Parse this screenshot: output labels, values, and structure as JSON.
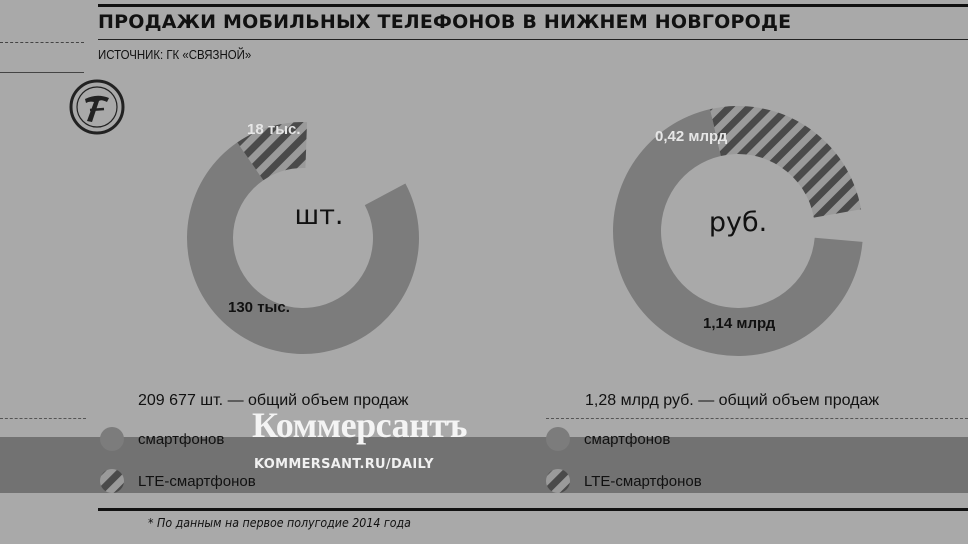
{
  "title": "ПРОДАЖИ МОБИЛЬНЫХ ТЕЛЕФОНОВ В НИЖНЕМ НОВГОРОДЕ",
  "source": "ИСТОЧНИК: ГК «СВЯЗНОЙ»",
  "footnote": "* По данным на первое полугодие 2014 года",
  "colors": {
    "background": "#a9a9a9",
    "smartphone_segment": "#7c7c7c",
    "lte_stripe_dark": "#4a4a4a",
    "lte_stripe_light": "#9a9a9a"
  },
  "watermark": {
    "name": "Коммерсантъ",
    "url": "KOMMERSANT.RU/DAILY",
    "logo_icon": "kommersant-logo-icon"
  },
  "chart_data": [
    {
      "type": "pie",
      "center_label": "шт.",
      "total_text": "209 677 шт. — общий объем продаж",
      "segments": [
        {
          "name": "смартфонов",
          "value": 130,
          "label": "130 тыс.",
          "pattern": "solid"
        },
        {
          "name": "LTE-смартфонов",
          "value": 18,
          "label": "18 тыс.",
          "pattern": "hatched"
        }
      ],
      "legend": [
        "смартфонов",
        "LTE-смартфонов"
      ]
    },
    {
      "type": "pie",
      "center_label": "руб.",
      "total_text": "1,28 млрд руб. — общий объем продаж",
      "segments": [
        {
          "name": "смартфонов",
          "value": 1.14,
          "label": "1,14 млрд",
          "pattern": "solid"
        },
        {
          "name": "LTE-смартфонов",
          "value": 0.42,
          "label": "0,42 млрд",
          "pattern": "hatched"
        }
      ],
      "legend": [
        "смартфонов",
        "LTE-смартфонов"
      ]
    }
  ]
}
